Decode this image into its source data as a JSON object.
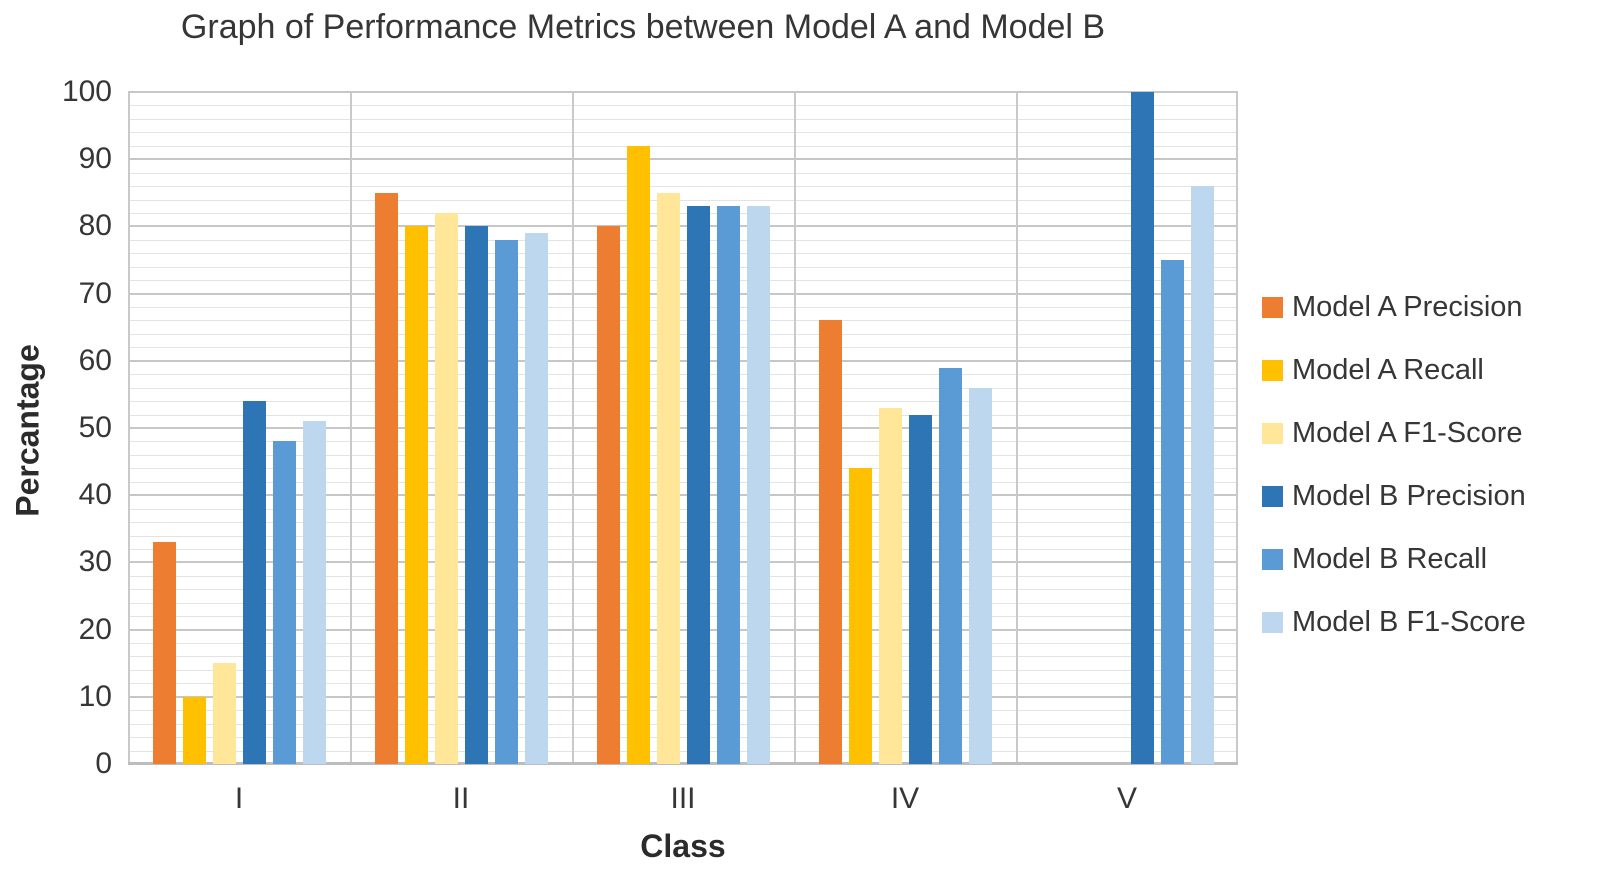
{
  "chart_data": {
    "type": "bar",
    "title": "Graph of Performance Metrics between Model A and Model B",
    "xlabel": "Class",
    "ylabel": "Percantage",
    "ylim": [
      0,
      100
    ],
    "y_major_step": 10,
    "y_minor_step": 2,
    "grid": "horizontal major and minor lines on; vertical lines at category boundaries",
    "legend_position": "right",
    "categories": [
      "I",
      "II",
      "III",
      "IV",
      "V"
    ],
    "series": [
      {
        "name": "Model A Precision",
        "color": "#ED7D31",
        "values": [
          33,
          85,
          80,
          66,
          0
        ]
      },
      {
        "name": "Model A Recall",
        "color": "#FFC000",
        "values": [
          10,
          80,
          92,
          44,
          0
        ]
      },
      {
        "name": "Model A F1-Score",
        "color": "#FFE699",
        "values": [
          15,
          82,
          85,
          53,
          0
        ]
      },
      {
        "name": "Model B Precision",
        "color": "#2E75B6",
        "values": [
          54,
          80,
          83,
          52,
          100
        ]
      },
      {
        "name": "Model B Recall",
        "color": "#5B9BD5",
        "values": [
          48,
          78,
          83,
          59,
          75
        ]
      },
      {
        "name": "Model B F1-Score",
        "color": "#BDD7EE",
        "values": [
          51,
          79,
          83,
          56,
          86
        ]
      }
    ]
  },
  "style_colors": {
    "grid_minor": "#e3e3e3",
    "grid_major": "#c7c7c7",
    "grid_vertical": "#c9c9c9",
    "text": "#363636"
  }
}
